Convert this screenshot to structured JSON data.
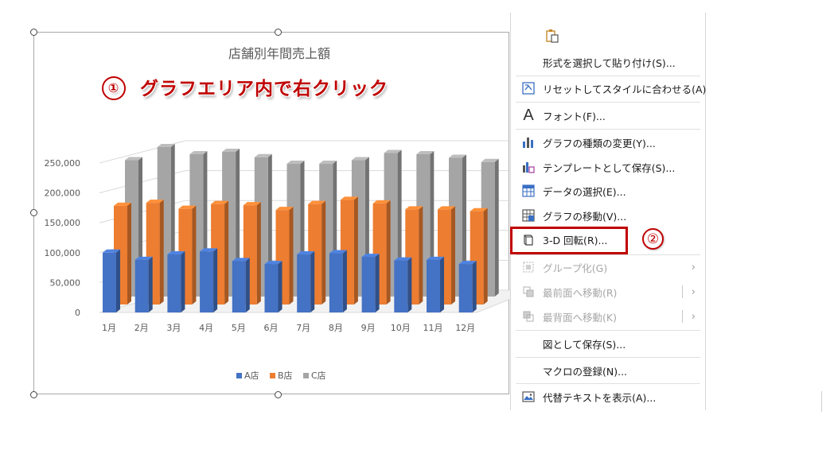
{
  "annotation": {
    "step1_number": "①",
    "step1_text": "グラフエリア内で右クリック",
    "step2_number": "②"
  },
  "colors": {
    "A": "#4472c4",
    "B": "#ed7d31",
    "C": "#a5a5a5",
    "highlight": "#c00000"
  },
  "chart_data": {
    "type": "bar",
    "title": "店舗別年間売上額",
    "categories": [
      "1月",
      "2月",
      "3月",
      "4月",
      "5月",
      "6月",
      "7月",
      "8月",
      "9月",
      "10月",
      "11月",
      "12月"
    ],
    "y_ticks": [
      "0",
      "50,000",
      "100,000",
      "150,000",
      "200,000",
      "250,000"
    ],
    "ylim": [
      0,
      250000
    ],
    "series": [
      {
        "name": "A店",
        "values": [
          100000,
          88000,
          97000,
          102000,
          86000,
          81000,
          97000,
          99000,
          93000,
          87000,
          88000,
          81000
        ]
      },
      {
        "name": "B店",
        "values": [
          165000,
          170000,
          160000,
          168000,
          166000,
          158000,
          168000,
          175000,
          169000,
          159000,
          159000,
          156000
        ]
      },
      {
        "name": "C店",
        "values": [
          228000,
          250000,
          238000,
          242000,
          233000,
          222000,
          222000,
          228000,
          240000,
          238000,
          232000,
          225000
        ]
      }
    ],
    "legend": [
      "A店",
      "B店",
      "C店"
    ],
    "legend_position": "bottom",
    "grid": true
  },
  "menu": {
    "paste_options_label": "形式を選択して貼り付け(S)...",
    "reset_label": "リセットしてスタイルに合わせる(A)",
    "font_label": "フォント(F)...",
    "change_type_label": "グラフの種類の変更(Y)...",
    "save_template_label": "テンプレートとして保存(S)...",
    "select_data_label": "データの選択(E)...",
    "move_chart_label": "グラフの移動(V)...",
    "rotate_3d_label": "3-D 回転(R)...",
    "group_label": "グループ化(G)",
    "bring_front_label": "最前面へ移動(R)",
    "send_back_label": "最背面へ移動(K)",
    "save_picture_label": "図として保存(S)...",
    "assign_macro_label": "マクロの登録(N)...",
    "alt_text_label": "代替テキストを表示(A)..."
  }
}
